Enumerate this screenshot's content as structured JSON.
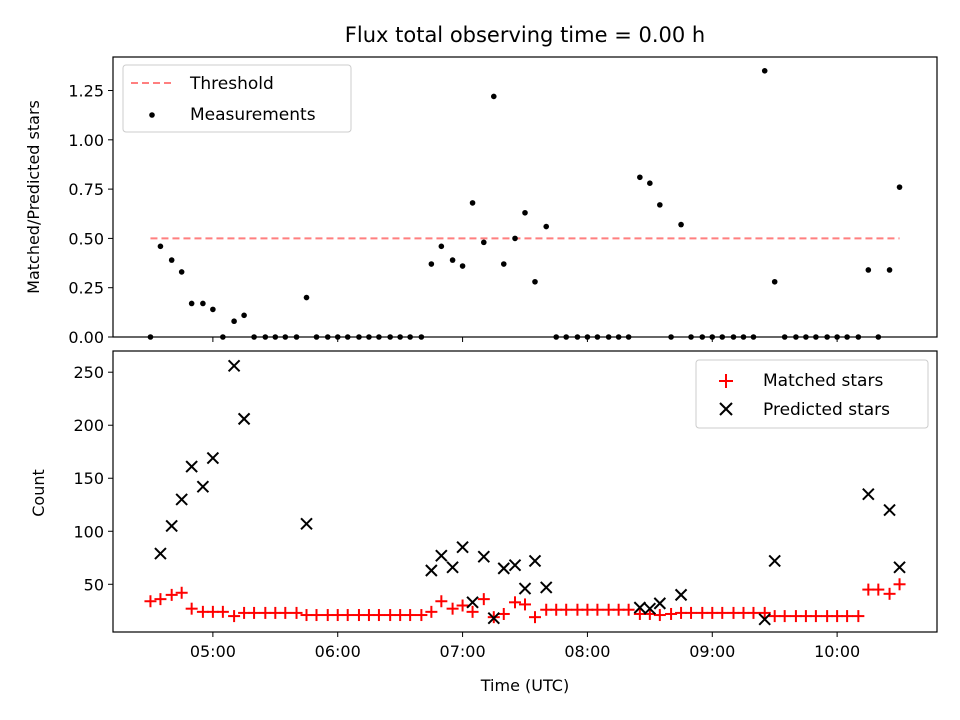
{
  "chart_data": [
    {
      "type": "scatter",
      "title": "Flux total observing time = 0.00 h",
      "ylabel": "Matched/Predicted stars",
      "xlabel": "",
      "x_unit": "hours (UTC)",
      "xlim": [
        4.2,
        10.8
      ],
      "ylim": [
        0,
        1.42
      ],
      "yticks": [
        0.0,
        0.25,
        0.5,
        0.75,
        1.0,
        1.25
      ],
      "ytick_labels": [
        "0.00",
        "0.25",
        "0.50",
        "0.75",
        "1.00",
        "1.25"
      ],
      "xticks": [
        5,
        6,
        7,
        8,
        9,
        10
      ],
      "legend_position": "upper-left",
      "grid": false,
      "threshold": {
        "name": "Threshold",
        "y": 0.5,
        "x_range": [
          4.5,
          10.5
        ],
        "color": "#ff7f7f"
      },
      "series": [
        {
          "name": "Measurements",
          "color": "#000000",
          "x": [
            4.5,
            4.58,
            4.67,
            4.75,
            4.83,
            4.92,
            5.0,
            5.08,
            5.17,
            5.25,
            5.33,
            5.42,
            5.5,
            5.58,
            5.67,
            5.75,
            5.83,
            5.92,
            6.0,
            6.08,
            6.17,
            6.25,
            6.33,
            6.42,
            6.5,
            6.58,
            6.67,
            6.75,
            6.83,
            6.92,
            7.0,
            7.08,
            7.17,
            7.25,
            7.33,
            7.42,
            7.5,
            7.58,
            7.67,
            7.75,
            7.83,
            7.92,
            8.0,
            8.08,
            8.17,
            8.25,
            8.33,
            8.42,
            8.5,
            8.58,
            8.67,
            8.75,
            8.83,
            8.92,
            9.0,
            9.08,
            9.17,
            9.25,
            9.33,
            9.42,
            9.5,
            9.58,
            9.67,
            9.75,
            9.83,
            9.92,
            10.0,
            10.08,
            10.17,
            10.25,
            10.33,
            10.42,
            10.5
          ],
          "y": [
            0.0,
            0.46,
            0.39,
            0.33,
            0.17,
            0.17,
            0.14,
            0.0,
            0.08,
            0.11,
            0.0,
            0.0,
            0.0,
            0.0,
            0.0,
            0.2,
            0.0,
            0.0,
            0.0,
            0.0,
            0.0,
            0.0,
            0.0,
            0.0,
            0.0,
            0.0,
            0.0,
            0.37,
            0.46,
            0.39,
            0.36,
            0.68,
            0.48,
            1.22,
            0.37,
            0.5,
            0.63,
            0.28,
            0.56,
            0.0,
            0.0,
            0.0,
            0.0,
            0.0,
            0.0,
            0.0,
            0.0,
            0.81,
            0.78,
            0.67,
            0.0,
            0.57,
            0.0,
            0.0,
            0.0,
            0.0,
            0.0,
            0.0,
            0.0,
            1.35,
            0.28,
            0.0,
            0.0,
            0.0,
            0.0,
            0.0,
            0.0,
            0.0,
            0.0,
            0.34,
            0.0,
            0.34,
            0.76
          ]
        }
      ]
    },
    {
      "type": "scatter",
      "title": "",
      "xlabel": "Time (UTC)",
      "ylabel": "Count",
      "x_unit": "hours (UTC)",
      "xlim": [
        4.2,
        10.8
      ],
      "ylim": [
        5,
        270
      ],
      "yticks": [
        50,
        100,
        150,
        200,
        250
      ],
      "ytick_labels": [
        "50",
        "100",
        "150",
        "200",
        "250"
      ],
      "xticks": [
        5,
        6,
        7,
        8,
        9,
        10
      ],
      "xtick_labels": [
        "05:00",
        "06:00",
        "07:00",
        "08:00",
        "09:00",
        "10:00"
      ],
      "legend_position": "upper-right",
      "grid": false,
      "series": [
        {
          "name": "Matched stars",
          "marker": "plus",
          "color": "#ff0000",
          "x": [
            4.5,
            4.58,
            4.67,
            4.75,
            4.83,
            4.92,
            5.0,
            5.08,
            5.17,
            5.25,
            5.33,
            5.42,
            5.5,
            5.58,
            5.67,
            5.75,
            5.83,
            5.92,
            6.0,
            6.08,
            6.17,
            6.25,
            6.33,
            6.42,
            6.5,
            6.58,
            6.67,
            6.75,
            6.83,
            6.92,
            7.0,
            7.08,
            7.17,
            7.25,
            7.33,
            7.42,
            7.5,
            7.58,
            7.67,
            7.75,
            7.83,
            7.92,
            8.0,
            8.08,
            8.17,
            8.25,
            8.33,
            8.42,
            8.5,
            8.58,
            8.67,
            8.75,
            8.83,
            8.92,
            9.0,
            9.08,
            9.17,
            9.25,
            9.33,
            9.42,
            9.5,
            9.58,
            9.67,
            9.75,
            9.83,
            9.92,
            10.0,
            10.08,
            10.17,
            10.25,
            10.33,
            10.42,
            10.5
          ],
          "y": [
            34,
            36,
            40,
            42,
            27,
            24,
            24,
            24,
            20,
            23,
            23,
            23,
            23,
            23,
            23,
            21,
            21,
            21,
            21,
            21,
            21,
            21,
            21,
            21,
            21,
            21,
            21,
            24,
            34,
            27,
            30,
            24,
            36,
            19,
            22,
            33,
            31,
            19,
            26,
            26,
            26,
            26,
            26,
            26,
            26,
            26,
            26,
            22,
            22,
            21,
            22,
            23,
            23,
            23,
            23,
            23,
            23,
            23,
            23,
            23,
            20,
            20,
            20,
            20,
            20,
            20,
            20,
            20,
            20,
            45,
            45,
            41,
            50
          ]
        },
        {
          "name": "Predicted stars",
          "marker": "x",
          "color": "#000000",
          "x": [
            4.58,
            4.67,
            4.75,
            4.83,
            4.92,
            5.0,
            5.17,
            5.25,
            5.75,
            6.75,
            6.83,
            6.92,
            7.0,
            7.08,
            7.17,
            7.25,
            7.33,
            7.42,
            7.5,
            7.58,
            7.67,
            8.42,
            8.5,
            8.58,
            8.75,
            9.42,
            9.5,
            10.25,
            10.42,
            10.5
          ],
          "y": [
            79,
            105,
            130,
            161,
            142,
            169,
            256,
            206,
            107,
            63,
            77,
            66,
            85,
            33,
            76,
            18,
            65,
            68,
            46,
            72,
            47,
            28,
            27,
            32,
            40,
            17,
            72,
            135,
            120,
            66
          ]
        }
      ]
    }
  ]
}
